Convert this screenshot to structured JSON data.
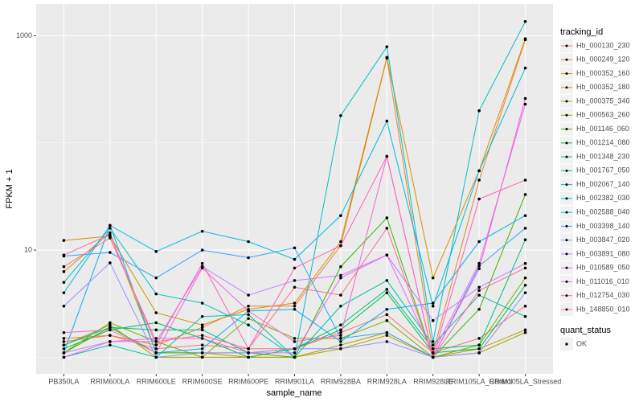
{
  "chart_data": {
    "type": "line",
    "x_label": "sample_name",
    "y_label": "FPKM + 1",
    "categories": [
      "PB350LA",
      "RRIM600LA",
      "RRIM600LE",
      "RRIM600SE",
      "RRIM600PE",
      "RRIM901LA",
      "RRIM928BA",
      "RRIM928LA",
      "RRIM928LE",
      "RRIM105LA_Control",
      "RRIM105LA_Stressed"
    ],
    "log_y": true,
    "ylim": [
      0.7,
      1980
    ],
    "yticks": [
      10,
      1000
    ],
    "grid": true,
    "legend_position": "right",
    "legend_title": "tracking_id",
    "point_color": "#000000",
    "shape_legend": {
      "title": "quant_status",
      "labels": [
        "OK"
      ]
    },
    "series": [
      {
        "name": "Hb_000130_230",
        "color": "#F8766D",
        "values": [
          1.4,
          1.6,
          1.2,
          1.3,
          1.2,
          1.2,
          1.7,
          2.5,
          1.1,
          1.5,
          3.0
        ]
      },
      {
        "name": "Hb_000249_120",
        "color": "#EA8331",
        "values": [
          1.5,
          1.6,
          1.3,
          1.9,
          3.0,
          3.0,
          11,
          620,
          1.1,
          45,
          920
        ]
      },
      {
        "name": "Hb_000352_160",
        "color": "#D89000",
        "values": [
          12.3,
          13.5,
          2.6,
          2.0,
          2.8,
          3.2,
          12,
          630,
          5.5,
          55,
          940
        ]
      },
      {
        "name": "Hb_000352_180",
        "color": "#C09B00",
        "values": [
          6.3,
          14.5,
          1.1,
          1.1,
          1.0,
          1.0,
          1.2,
          1.6,
          1.0,
          1.2,
          1.8
        ]
      },
      {
        "name": "Hb_000375_340",
        "color": "#A3A500",
        "values": [
          1.3,
          2.0,
          1.0,
          1.0,
          1.0,
          1.0,
          1.3,
          1.7,
          1.0,
          1.1,
          1.7
        ]
      },
      {
        "name": "Hb_000563_260",
        "color": "#7CAE00",
        "values": [
          1.1,
          2.1,
          1.4,
          1.0,
          2.3,
          1.5,
          1.5,
          2.2,
          1.0,
          1.3,
          5.5
        ]
      },
      {
        "name": "Hb_001146_060",
        "color": "#39B600",
        "values": [
          1.1,
          1.9,
          1.1,
          1.1,
          1.1,
          1.0,
          7.0,
          20,
          1.0,
          2.8,
          33
        ]
      },
      {
        "name": "Hb_001214_080",
        "color": "#00BB4E",
        "values": [
          1.2,
          1.8,
          2.1,
          1.5,
          1.0,
          1.2,
          1.8,
          4.0,
          1.1,
          1.2,
          4.7
        ]
      },
      {
        "name": "Hb_001348_230",
        "color": "#00BF7D",
        "values": [
          1.3,
          1.9,
          1.8,
          1.8,
          1.1,
          1.2,
          2.0,
          4.3,
          1.2,
          1.3,
          12.5
        ]
      },
      {
        "name": "Hb_001767_050",
        "color": "#00C1A3",
        "values": [
          1.0,
          1.3,
          1.0,
          2.4,
          2.5,
          1.0,
          3.0,
          5.2,
          1.3,
          3.8,
          2.4
        ]
      },
      {
        "name": "Hb_002067_140",
        "color": "#00BFC4",
        "values": [
          5.0,
          16,
          3.9,
          3.2,
          2.0,
          1.0,
          180,
          790,
          1.4,
          200,
          1360
        ]
      },
      {
        "name": "Hb_002382_030",
        "color": "#00BAE0",
        "values": [
          4.0,
          17,
          9.7,
          15,
          12,
          8.2,
          21,
          160,
          3.0,
          55,
          500
        ]
      },
      {
        "name": "Hb_002588_040",
        "color": "#00B0F6",
        "values": [
          1.1,
          17,
          1.1,
          1.2,
          2.7,
          2.8,
          1.4,
          2.8,
          3.2,
          12,
          21
        ]
      },
      {
        "name": "Hb_003398_140",
        "color": "#35A2FF",
        "values": [
          8.8,
          9.5,
          5.5,
          10,
          8.5,
          10.5,
          1.5,
          1.7,
          1.0,
          7.1,
          16
        ]
      },
      {
        "name": "Hb_003847_020",
        "color": "#9590FF",
        "values": [
          3.0,
          7.6,
          1.0,
          1.1,
          1.1,
          1.2,
          1.2,
          1.4,
          1.0,
          1.1,
          4.0
        ]
      },
      {
        "name": "Hb_003891_080",
        "color": "#C77CFF",
        "values": [
          1.1,
          1.4,
          1.4,
          7.0,
          3.8,
          5.2,
          5.8,
          9.0,
          2.2,
          4.5,
          7.5
        ]
      },
      {
        "name": "Hb_010589_050",
        "color": "#E76BF3",
        "values": [
          1.0,
          1.4,
          1.5,
          1.5,
          1.1,
          1.1,
          5.5,
          9.0,
          1.1,
          7.5,
          230
        ]
      },
      {
        "name": "Hb_011016_010",
        "color": "#FA62DB",
        "values": [
          1.7,
          1.8,
          1.1,
          6.8,
          2.7,
          1.4,
          1.6,
          75,
          1.0,
          6.7,
          260
        ]
      },
      {
        "name": "Hb_012754_030",
        "color": "#FF62BC",
        "values": [
          9.0,
          14,
          1.3,
          7.5,
          1.2,
          6.8,
          11,
          75,
          1.0,
          30,
          45
        ]
      },
      {
        "name": "Hb_148850_010",
        "color": "#FF6C91",
        "values": [
          7.0,
          13,
          1.4,
          1.6,
          1.2,
          4.5,
          3.8,
          16,
          1.0,
          4.2,
          6.8
        ]
      }
    ]
  }
}
